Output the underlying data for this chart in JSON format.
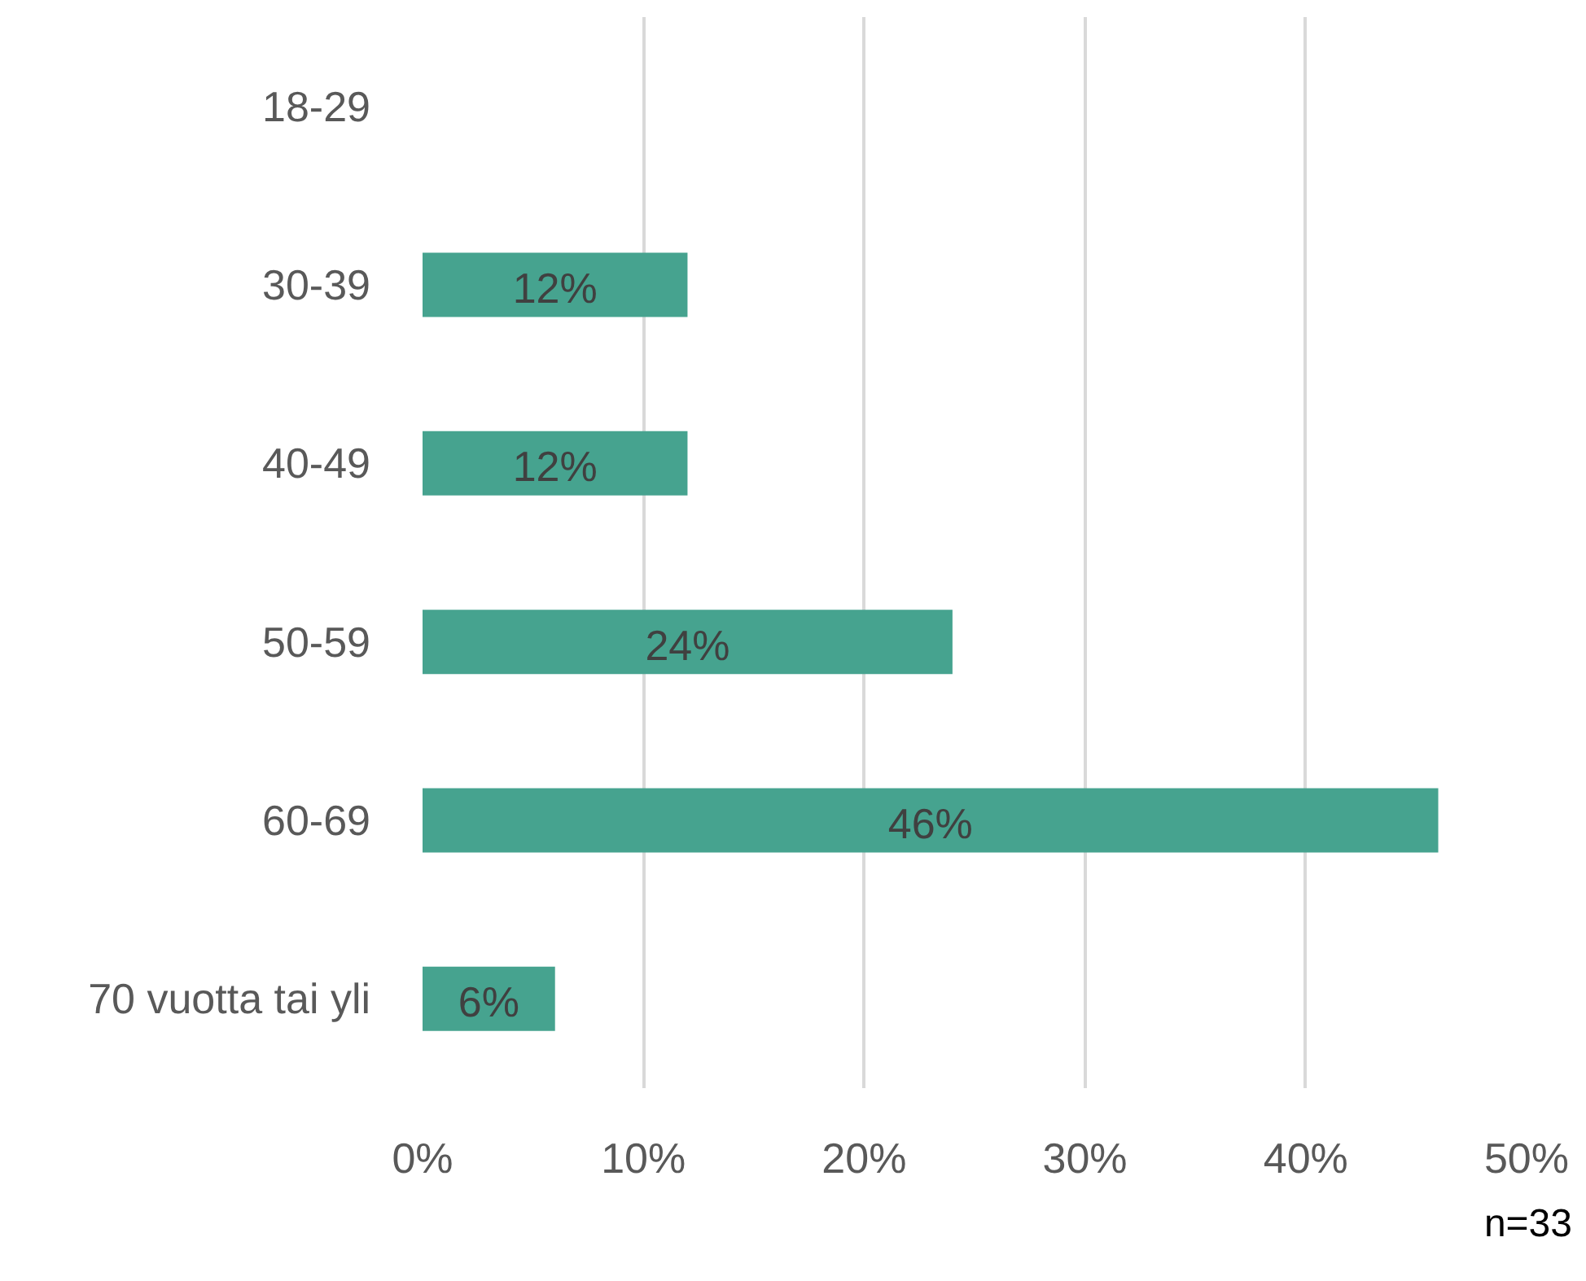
{
  "chart_data": {
    "type": "bar",
    "orientation": "horizontal",
    "categories": [
      "18-29",
      "30-39",
      "40-49",
      "50-59",
      "60-69",
      "70 vuotta tai yli"
    ],
    "values": [
      0,
      12,
      12,
      24,
      46,
      6
    ],
    "value_labels": [
      null,
      "12%",
      "12%",
      "24%",
      "46%",
      "6%"
    ],
    "color": "#46a38f",
    "xlim": [
      0,
      50
    ],
    "xticks": [
      {
        "value": 0,
        "label": "0%"
      },
      {
        "value": 10,
        "label": "10%"
      },
      {
        "value": 20,
        "label": "20%"
      },
      {
        "value": 30,
        "label": "30%"
      },
      {
        "value": 40,
        "label": "40%"
      },
      {
        "value": 50,
        "label": "50%"
      }
    ],
    "grid": "x",
    "annotations": [
      "n=33"
    ]
  }
}
